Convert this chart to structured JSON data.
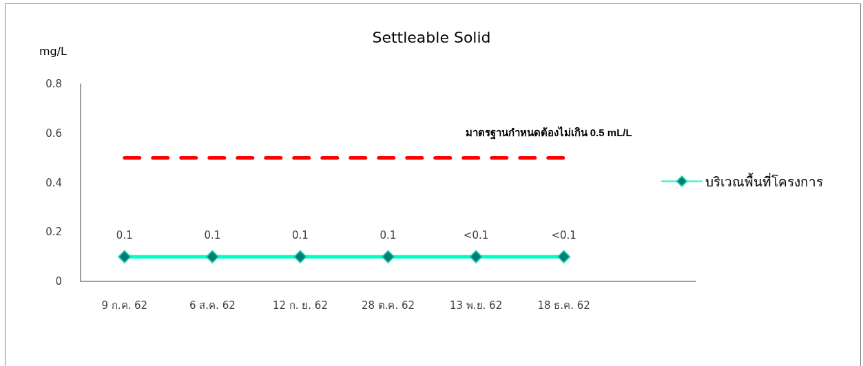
{
  "chart_data": {
    "type": "line",
    "title": "Settleable Solid",
    "ylabel": "mg/L",
    "categories": [
      "9 ก.ค. 62",
      "6 ส.ค. 62",
      "12 ก. ย. 62",
      "28 ต.ค. 62",
      "13 พ.ย. 62",
      "18 ธ.ค. 62",
      null
    ],
    "series": [
      {
        "name": "บริเวณพื้นที่โครงการ",
        "color": "#00ffcc",
        "values": [
          0.1,
          0.1,
          0.1,
          0.1,
          0.1,
          0.1,
          null
        ],
        "value_labels": [
          "0.1",
          "0.1",
          "0.1",
          "0.1",
          "<0.1",
          "<0.1",
          null
        ]
      }
    ],
    "ylim": [
      0,
      0.8
    ],
    "yticks": [
      0,
      0.2,
      0.4,
      0.6,
      0.8
    ],
    "ref_lines": [
      {
        "axis": "y",
        "value": 0.5,
        "label": "มาตรฐานกำหนดต้องไม่เกิน 0.5 mL/L",
        "color": "#ff0000",
        "line_style": "dashed"
      }
    ],
    "marker": "diamond",
    "line_style": "solid",
    "grid": false,
    "legend": "right"
  }
}
